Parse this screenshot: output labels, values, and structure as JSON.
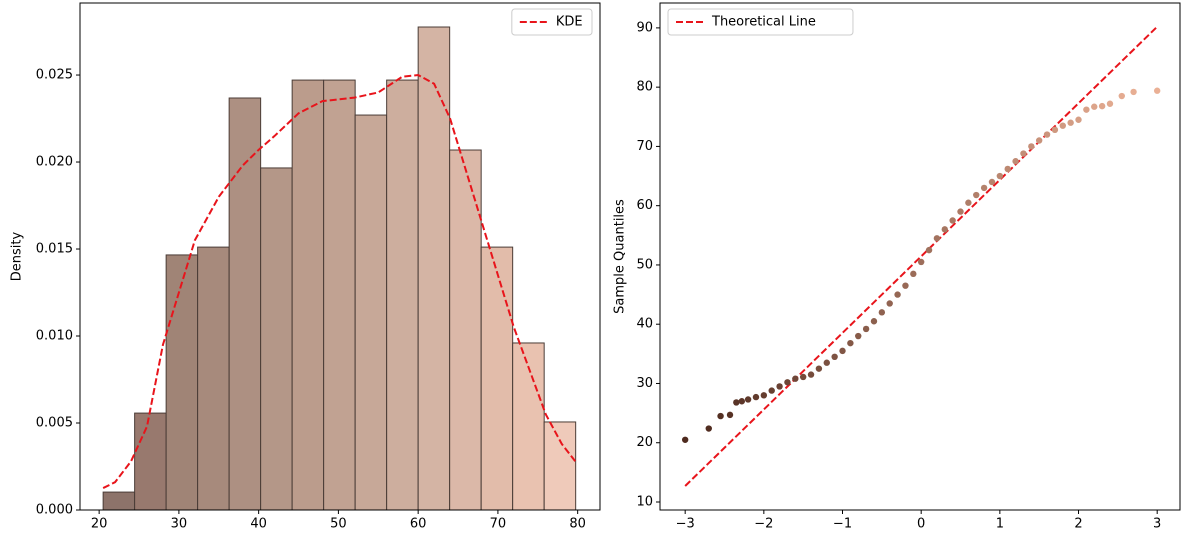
{
  "chart_data": [
    {
      "type": "histogram",
      "ylabel": "Density",
      "bins": [
        20.5,
        24.45,
        28.4,
        32.35,
        36.3,
        40.25,
        44.2,
        48.15,
        52.1,
        56.05,
        60.0,
        63.95,
        67.9,
        71.85,
        75.8,
        79.75
      ],
      "values": [
        0.00103,
        0.00557,
        0.01466,
        0.01511,
        0.02368,
        0.01966,
        0.02471,
        0.02471,
        0.0227,
        0.02471,
        0.02776,
        0.02069,
        0.01511,
        0.0096,
        0.00506
      ],
      "colors": [
        "#8d736a",
        "#98796e",
        "#a08476",
        "#a78a7c",
        "#ad9082",
        "#b49788",
        "#bb9c8c",
        "#c1a292",
        "#c7a898",
        "#cdae9e",
        "#d4b4a4",
        "#dbb8a8",
        "#e2bcaa",
        "#e9c2b0",
        "#efcaba"
      ],
      "series": [
        {
          "name": "KDE",
          "color": "#e8141b",
          "x": [
            20.5,
            22,
            24,
            26,
            28,
            30,
            32,
            35,
            38,
            40,
            42,
            45,
            48,
            52,
            55,
            58,
            60,
            62,
            64,
            66,
            68,
            70,
            72,
            74,
            76,
            78,
            79.7
          ],
          "values": [
            0.00126,
            0.0016,
            0.0028,
            0.0048,
            0.0095,
            0.0125,
            0.0155,
            0.018,
            0.0198,
            0.0207,
            0.0215,
            0.0228,
            0.0235,
            0.0237,
            0.024,
            0.0249,
            0.025,
            0.0245,
            0.0225,
            0.0195,
            0.0165,
            0.0135,
            0.0105,
            0.008,
            0.0055,
            0.0038,
            0.0028
          ]
        }
      ],
      "legend": "upper right",
      "xlim": [
        17.6,
        82.8
      ],
      "xticks": [
        20,
        30,
        40,
        50,
        60,
        70,
        80
      ],
      "ylim": [
        0,
        0.02914
      ],
      "yticks": [
        {
          "value": 0,
          "label": "0.000"
        },
        {
          "value": 0.005,
          "label": "0.005"
        },
        {
          "value": 0.01,
          "label": "0.010"
        },
        {
          "value": 0.015,
          "label": "0.015"
        },
        {
          "value": 0.02,
          "label": "0.020"
        },
        {
          "value": 0.025,
          "label": "0.025"
        }
      ]
    },
    {
      "type": "scatter",
      "ylabel": "Sample Quantiles",
      "x": [
        -3,
        -2.7,
        -2.55,
        -2.43,
        -2.35,
        -2.28,
        -2.2,
        -2.1,
        -2.0,
        -1.9,
        -1.8,
        -1.7,
        -1.6,
        -1.5,
        -1.4,
        -1.3,
        -1.2,
        -1.1,
        -1.0,
        -0.9,
        -0.8,
        -0.7,
        -0.6,
        -0.5,
        -0.4,
        -0.3,
        -0.2,
        -0.1,
        0,
        0.1,
        0.2,
        0.3,
        0.4,
        0.5,
        0.6,
        0.7,
        0.8,
        0.9,
        1.0,
        1.1,
        1.2,
        1.3,
        1.4,
        1.5,
        1.6,
        1.7,
        1.8,
        1.9,
        2.0,
        2.1,
        2.2,
        2.3,
        2.4,
        2.55,
        2.7,
        3.0
      ],
      "values": [
        20.5,
        22.4,
        24.5,
        24.7,
        26.8,
        27.0,
        27.3,
        27.7,
        28.0,
        28.8,
        29.5,
        30.2,
        30.8,
        31.1,
        31.5,
        32.5,
        33.5,
        34.5,
        35.5,
        36.8,
        38.0,
        39.2,
        40.5,
        42.0,
        43.5,
        45.0,
        46.5,
        48.5,
        50.5,
        52.5,
        54.5,
        56.0,
        57.5,
        59.0,
        60.5,
        61.8,
        63.0,
        64.0,
        65.0,
        66.2,
        67.5,
        68.8,
        70.0,
        71.0,
        72.0,
        72.8,
        73.5,
        74.0,
        74.5,
        76.2,
        76.7,
        76.8,
        77.2,
        78.5,
        79.2,
        79.4
      ],
      "color_range": [
        "#4e2a1e",
        "#eab095"
      ],
      "line": {
        "name": "Theoretical Line",
        "color": "#e8141b",
        "x": [
          -3,
          3
        ],
        "values": [
          12.7,
          90.2
        ]
      },
      "legend": "upper left",
      "xlim": [
        -3.32,
        3.29
      ],
      "xticks": [
        {
          "value": -3,
          "label": "−3"
        },
        {
          "value": -2,
          "label": "−2"
        },
        {
          "value": -1,
          "label": "−1"
        },
        0,
        1,
        2,
        3
      ],
      "ylim": [
        8.65,
        94.2
      ],
      "yticks": [
        10,
        20,
        30,
        40,
        50,
        60,
        70,
        80,
        90
      ]
    }
  ]
}
